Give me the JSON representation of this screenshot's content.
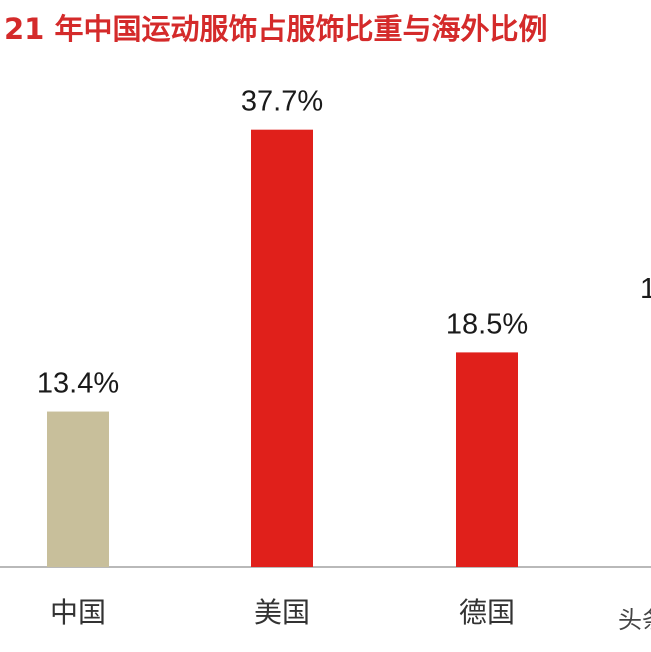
{
  "chart_data": {
    "type": "bar",
    "title": "21 年中国运动服饰占服饰比重与海外比例",
    "categories": [
      "中国",
      "美国",
      "德国",
      ""
    ],
    "values": [
      13.4,
      37.7,
      18.5,
      null
    ],
    "value_labels": [
      "13.4%",
      "37.7%",
      "18.5%",
      "1"
    ],
    "bar_colors": [
      "#c8bf9b",
      "#e0201b",
      "#e0201b",
      "#e0201b"
    ],
    "title_color": "#d42a2a",
    "xlabel": "",
    "ylabel": "",
    "ylim": [
      0,
      40
    ],
    "grid": false,
    "legend": "none"
  },
  "watermark": "头条"
}
